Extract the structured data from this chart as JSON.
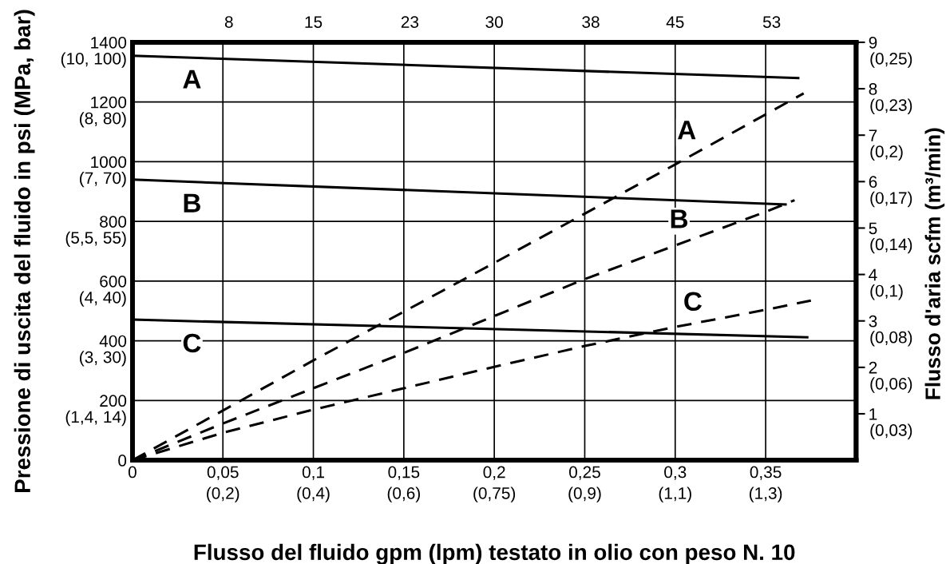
{
  "chart_data": {
    "type": "line",
    "xlabel": "Flusso del fluido gpm (lpm) testato in olio con peso N. 10",
    "ylabel": "Pressione di uscita del fluido in psi (MPa, bar)",
    "y2label": "Flusso d'aria scfm (m³/min)",
    "xlim": [
      0,
      0.4
    ],
    "xticks": [
      {
        "value": 0,
        "label": "0"
      },
      {
        "value": 0.05,
        "label": "0,05"
      },
      {
        "value": 0.1,
        "label": "0,1"
      },
      {
        "value": 0.15,
        "label": "0,15"
      },
      {
        "value": 0.2,
        "label": "0,2"
      },
      {
        "value": 0.25,
        "label": "0,25"
      },
      {
        "value": 0.3,
        "label": "0,3"
      },
      {
        "value": 0.35,
        "label": "0,35"
      }
    ],
    "x2lim": [
      0,
      60
    ],
    "x2ticks": [
      8,
      15,
      23,
      30,
      38,
      45,
      53
    ],
    "ylim": [
      0,
      1400
    ],
    "yticks": [
      0,
      200,
      400,
      600,
      800,
      1000,
      1200,
      1400
    ],
    "y2lim": [
      0,
      9
    ],
    "y2ticks": [
      1,
      2,
      3,
      4,
      5,
      6,
      7,
      8,
      9
    ],
    "grid": true,
    "marker": "none",
    "series": [
      {
        "name": "A",
        "color": "#000000",
        "line_style": "solid",
        "x": [
          0,
          0.368
        ],
        "values": [
          1355,
          1280
        ]
      },
      {
        "name": "B",
        "color": "#000000",
        "line_style": "solid",
        "x": [
          0,
          0.361
        ],
        "values": [
          940,
          857
        ]
      },
      {
        "name": "C",
        "color": "#000000",
        "line_style": "solid",
        "x": [
          0,
          0.373
        ],
        "values": [
          471,
          412
        ]
      },
      {
        "name": "A",
        "color": "#000000",
        "line_style": "dashed",
        "axis": "y2",
        "x": [
          0,
          0.05,
          0.1,
          0.15,
          0.2,
          0.3,
          0.371
        ],
        "values": [
          0,
          1.07,
          2.15,
          3.2,
          4.25,
          6.37,
          7.9
        ]
      },
      {
        "name": "B",
        "color": "#000000",
        "line_style": "dashed",
        "axis": "y2",
        "x": [
          0,
          0.05,
          0.1,
          0.15,
          0.25,
          0.35,
          0.366
        ],
        "values": [
          0,
          0.79,
          1.55,
          2.31,
          3.9,
          5.35,
          5.6
        ]
      },
      {
        "name": "C",
        "color": "#000000",
        "line_style": "dashed",
        "axis": "y2",
        "x": [
          0,
          0.05,
          0.1,
          0.15,
          0.2,
          0.25,
          0.3,
          0.35,
          0.375
        ],
        "values": [
          0,
          0.59,
          1.09,
          1.55,
          2.01,
          2.46,
          2.87,
          3.24,
          3.44
        ]
      }
    ],
    "annotations": [
      "(0,2)",
      "(0,4)",
      "(0,6)",
      "(0,75)",
      "(0,9)",
      "(1,1)",
      "(1,3)",
      "(1,4, 14)",
      "(3, 30)",
      "(4, 40)",
      "(5,5, 55)",
      "(7, 70)",
      "(8, 80)",
      "(10, 100)",
      "(0,03)",
      "(0,06)",
      "(0,08)",
      "(0,1)",
      "(0,14)",
      "(0,17)",
      "(0,2)",
      "(0,23)",
      "(0,25)"
    ]
  }
}
